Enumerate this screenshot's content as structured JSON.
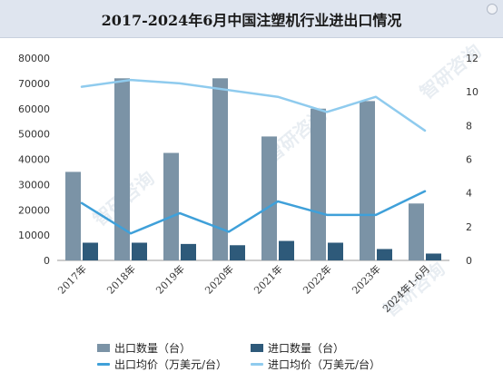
{
  "title": "2017-2024年6月中国注塑机行业进出口情况",
  "watermark": "智研咨询",
  "colors": {
    "export_qty": "#7b93a6",
    "import_qty": "#2e5a7a",
    "export_price": "#3fa0d9",
    "import_price": "#8fcbee",
    "title_bg": "#dfe5ef"
  },
  "chart_data": {
    "type": "bar",
    "categories": [
      "2017年",
      "2018年",
      "2019年",
      "2020年",
      "2021年",
      "2022年",
      "2023年",
      "2024年1-6月"
    ],
    "series": [
      {
        "name": "出口数量（台）",
        "type": "bar",
        "axis": "left",
        "values": [
          35000,
          72000,
          42500,
          72000,
          49000,
          60000,
          63000,
          22500
        ]
      },
      {
        "name": "进口数量（台）",
        "type": "bar",
        "axis": "left",
        "values": [
          7000,
          7000,
          6500,
          6000,
          7700,
          7000,
          4500,
          2700
        ]
      },
      {
        "name": "出口均价（万美元/台）",
        "type": "line",
        "axis": "right",
        "values": [
          3.4,
          1.6,
          2.8,
          1.7,
          3.5,
          2.7,
          2.7,
          4.1
        ]
      },
      {
        "name": "进口均价（万美元/台）",
        "type": "line",
        "axis": "right",
        "values": [
          10.3,
          10.7,
          10.5,
          10.1,
          9.7,
          8.8,
          9.7,
          7.7
        ]
      }
    ],
    "y_left": {
      "min": 0,
      "max": 80000,
      "ticks": [
        0,
        10000,
        20000,
        30000,
        40000,
        50000,
        60000,
        70000,
        80000
      ]
    },
    "y_right": {
      "min": 0,
      "max": 12,
      "ticks": [
        0,
        2,
        4,
        6,
        8,
        10,
        12
      ]
    },
    "grid": false,
    "legend_position": "bottom"
  }
}
